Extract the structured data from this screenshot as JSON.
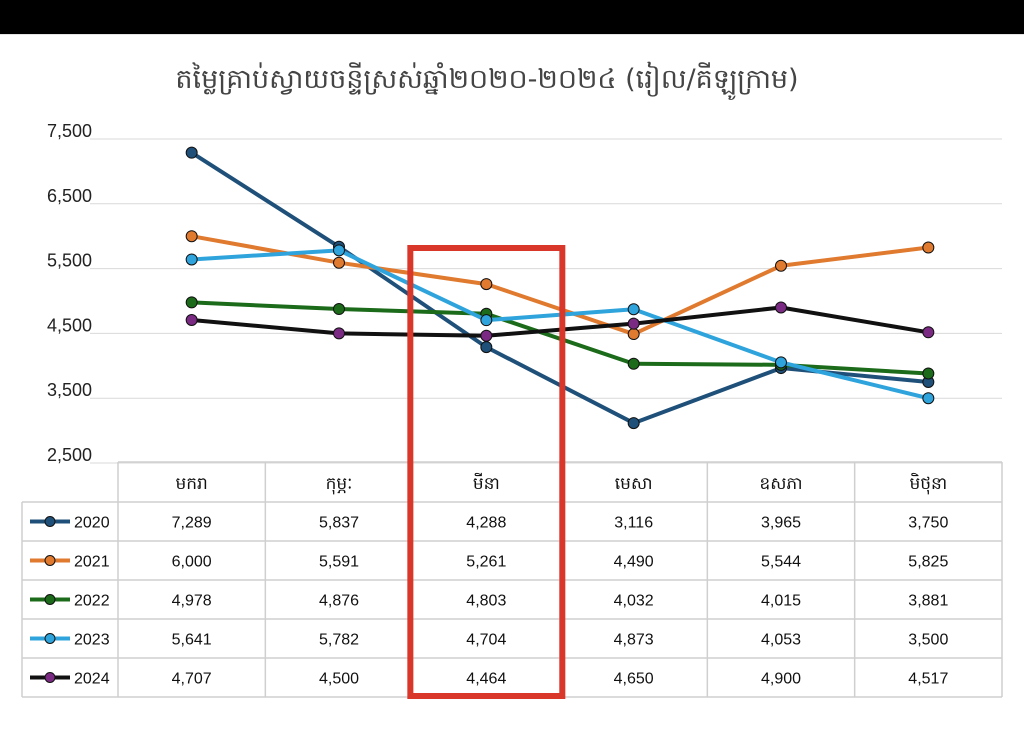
{
  "chart_data": {
    "type": "line",
    "title": "តម្លៃគ្រាប់ស្វាយចន្ទីស្រស់ឆ្នាំ២០២០-២០២៤ (រៀល/គីឡូក្រាម)",
    "categories": [
      "មករា",
      "កុម្ភៈ",
      "មីនា",
      "មេសា",
      "ឧសភា",
      "មិថុនា"
    ],
    "ylim": [
      2500,
      7500
    ],
    "yticks": [
      "7,500",
      "6,500",
      "5,500",
      "4,500",
      "3,500",
      "2,500"
    ],
    "ytick_values": [
      7500,
      6500,
      5500,
      4500,
      3500,
      2500
    ],
    "grid": true,
    "legend_placement": "data table below chart",
    "highlight_category": "មីនា",
    "highlight_color": "#d9372a",
    "series": [
      {
        "name": "2020",
        "color": "#1f5079",
        "values": [
          7289,
          5837,
          4288,
          3116,
          3965,
          3750
        ],
        "labels": [
          "7,289",
          "5,837",
          "4,288",
          "3,116",
          "3,965",
          "3,750"
        ]
      },
      {
        "name": "2021",
        "color": "#e07a2f",
        "values": [
          6000,
          5591,
          5261,
          4490,
          5544,
          5825
        ],
        "labels": [
          "6,000",
          "5,591",
          "5,261",
          "4,490",
          "5,544",
          "5,825"
        ]
      },
      {
        "name": "2022",
        "color": "#1c6b1a",
        "values": [
          4978,
          4876,
          4803,
          4032,
          4015,
          3881
        ],
        "labels": [
          "4,978",
          "4,876",
          "4,803",
          "4,032",
          "4,015",
          "3,881"
        ]
      },
      {
        "name": "2023",
        "color": "#2fa4dc",
        "values": [
          5641,
          5782,
          4704,
          4873,
          4053,
          3500
        ],
        "labels": [
          "5,641",
          "5,782",
          "4,704",
          "4,873",
          "4,053",
          "3,500"
        ]
      },
      {
        "name": "2024",
        "color": "#111111",
        "marker_color": "#7a2a82",
        "values": [
          4707,
          4500,
          4464,
          4650,
          4900,
          4517
        ],
        "labels": [
          "4,707",
          "4,500",
          "4,464",
          "4,650",
          "4,900",
          "4,517"
        ]
      }
    ]
  }
}
